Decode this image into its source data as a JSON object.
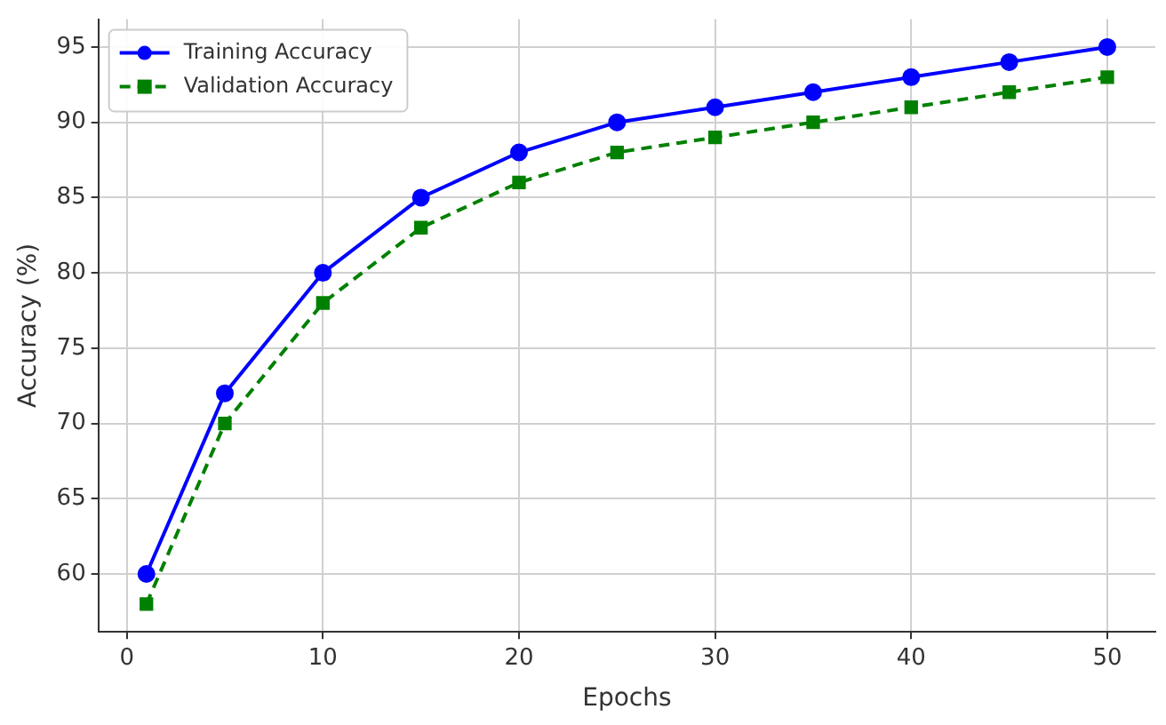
{
  "chart_data": {
    "type": "line",
    "xlabel": "Epochs",
    "ylabel": "Accuracy (%)",
    "x": [
      1,
      5,
      10,
      15,
      20,
      25,
      30,
      35,
      40,
      45,
      50
    ],
    "series": [
      {
        "name": "Training Accuracy",
        "color": "#0000ff",
        "values": [
          60,
          72,
          80,
          85,
          88,
          90,
          91,
          92,
          93,
          94,
          95
        ],
        "marker": "circle",
        "line_style": "solid"
      },
      {
        "name": "Validation Accuracy",
        "color": "#008000",
        "values": [
          58,
          70,
          78,
          83,
          86,
          88,
          89,
          90,
          91,
          92,
          93
        ],
        "marker": "square",
        "line_style": "dashed"
      }
    ],
    "xlim": [
      -1.45,
      52.45
    ],
    "xticks": [
      0,
      10,
      20,
      30,
      40,
      50
    ],
    "ylim": [
      56.15,
      96.85
    ],
    "yticks": [
      60,
      65,
      70,
      75,
      80,
      85,
      90,
      95
    ],
    "grid": true,
    "legend": "top left"
  }
}
